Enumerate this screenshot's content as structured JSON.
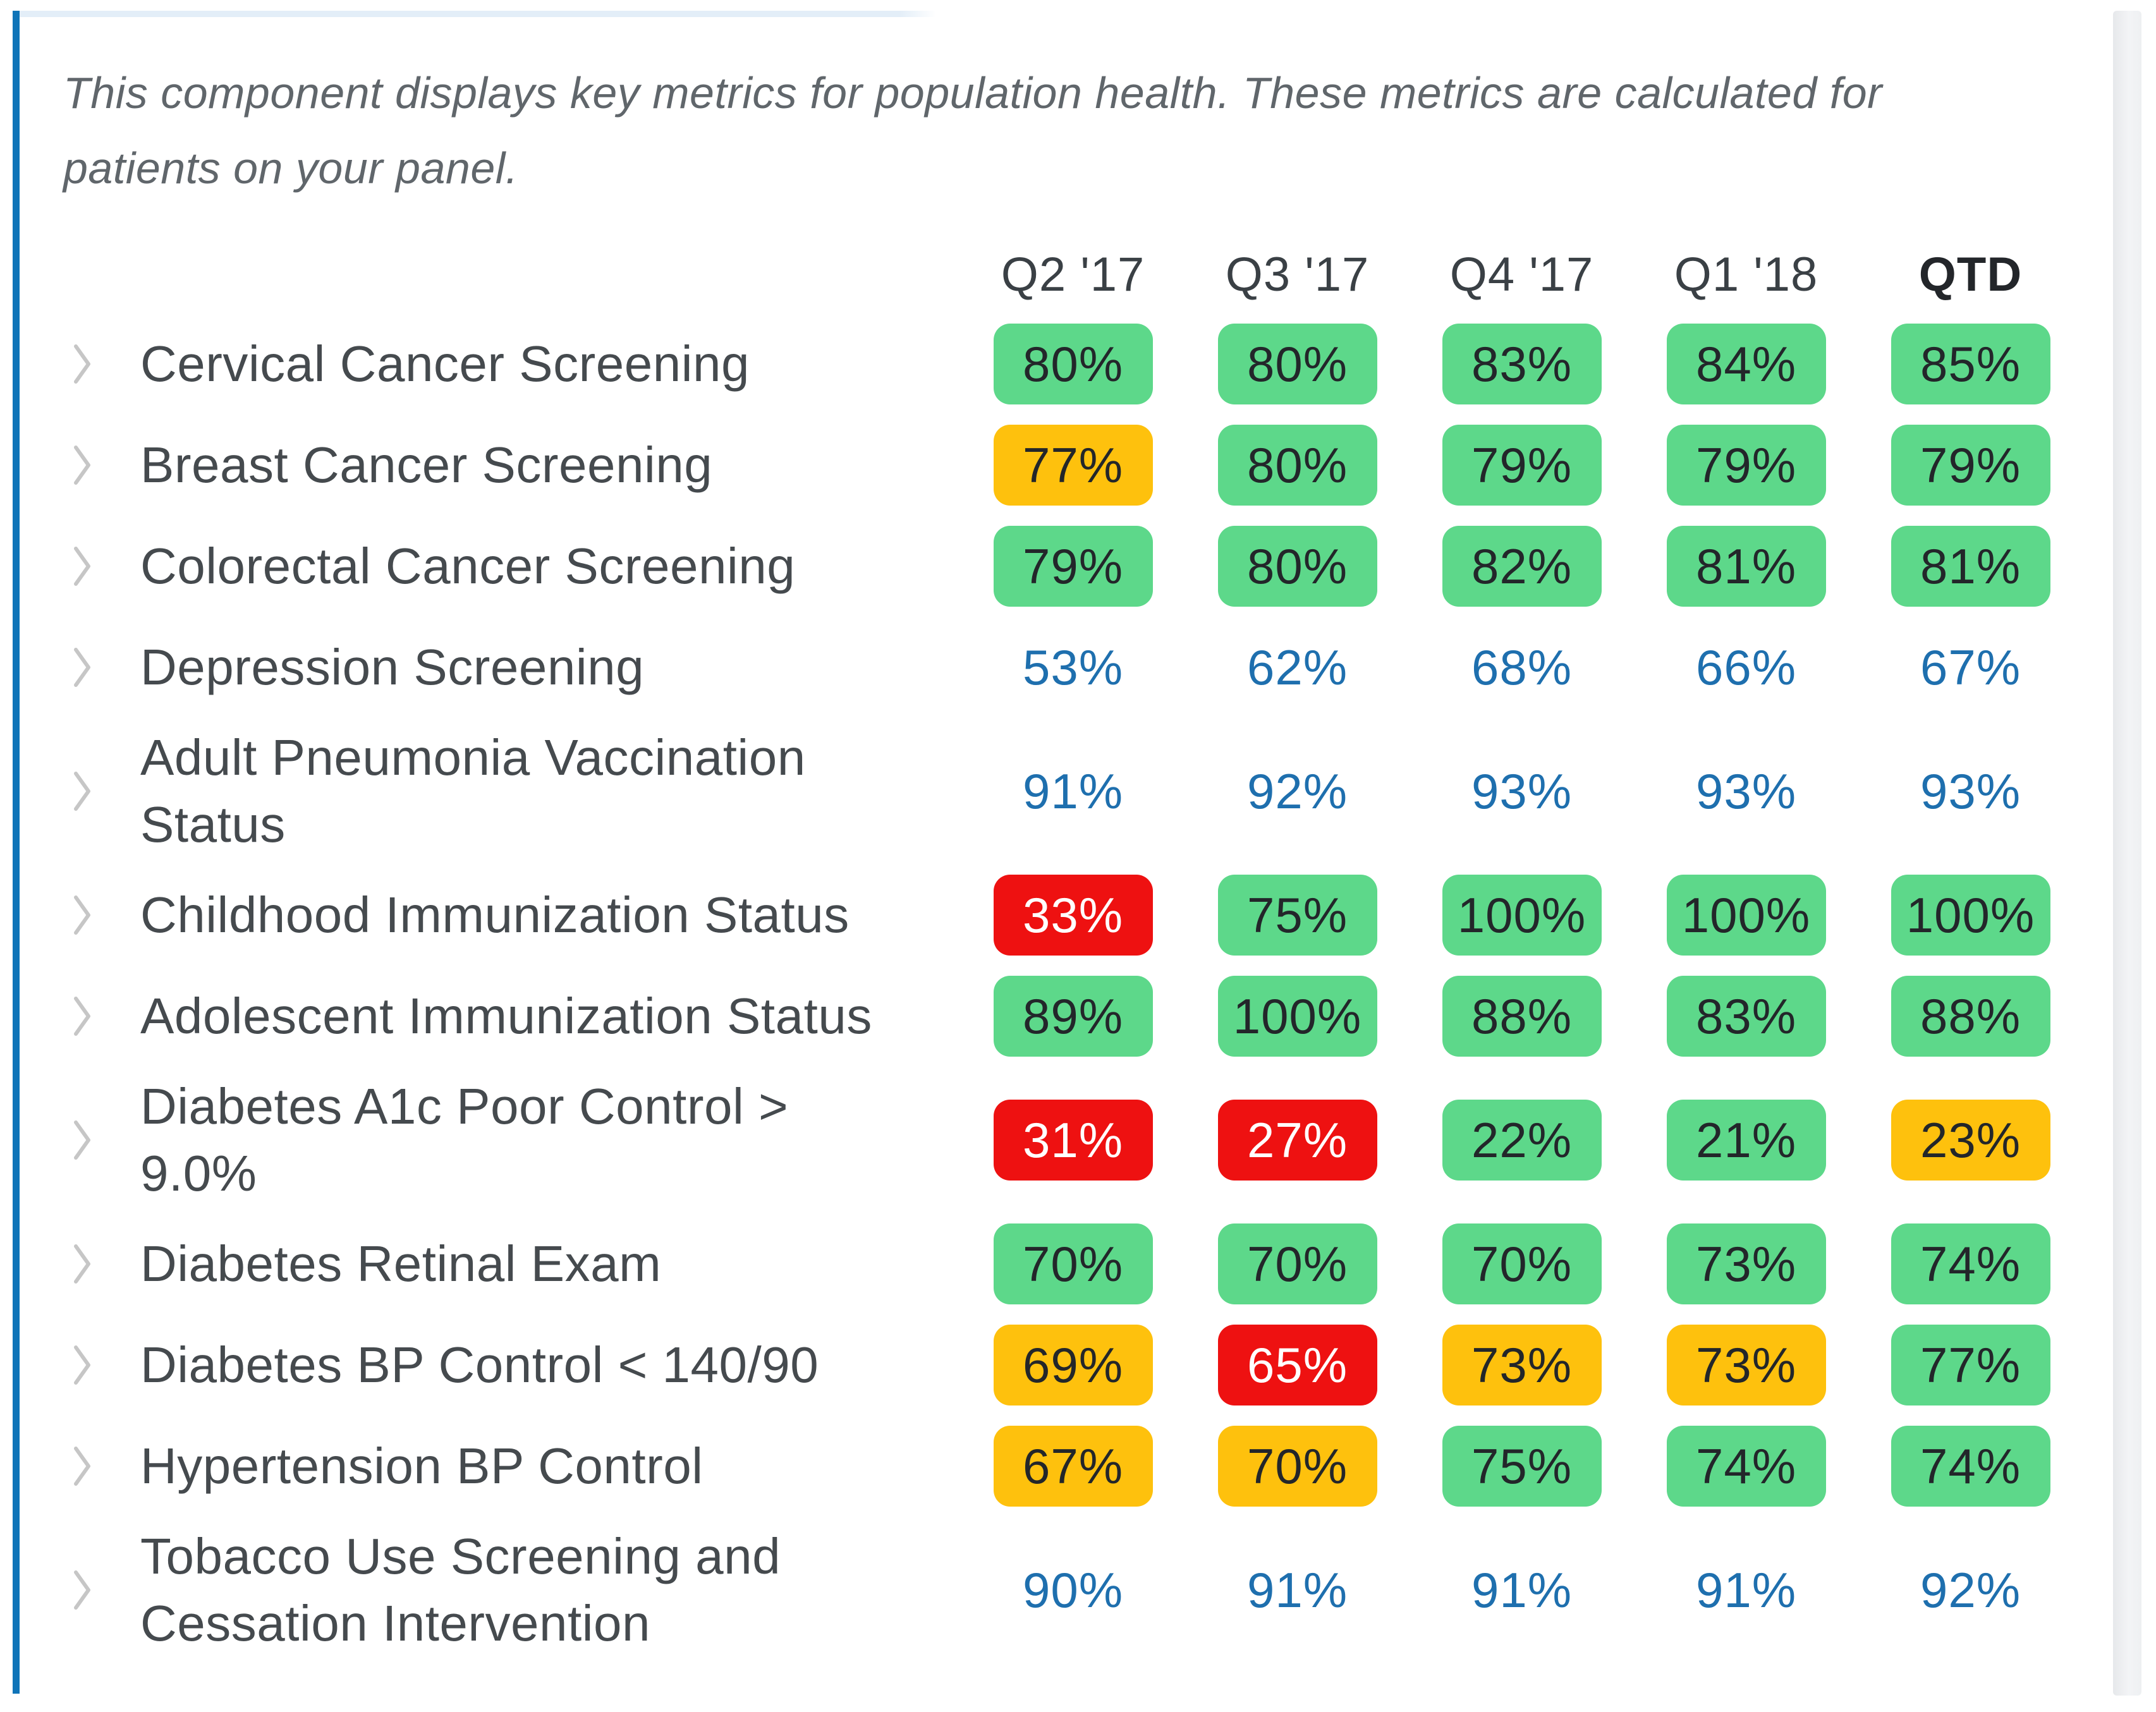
{
  "description_lines": [
    "This component displays key metrics for population health. These metrics are calculated for",
    "patients on your panel."
  ],
  "columns": [
    {
      "label": "Q2 '17",
      "emphasis": false
    },
    {
      "label": "Q3 '17",
      "emphasis": false
    },
    {
      "label": "Q4 '17",
      "emphasis": false
    },
    {
      "label": "Q1 '18",
      "emphasis": false
    },
    {
      "label": "QTD",
      "emphasis": true
    }
  ],
  "status_colors": {
    "green": "#5dd88a",
    "yellow": "#fec10d",
    "red": "#ee1111",
    "plain_value_text": "#1e6fae",
    "accent_bar": "#0f74b8",
    "top_strip": "#e3eef8"
  },
  "metrics": [
    {
      "label_lines": [
        "Cervical Cancer Screening"
      ],
      "values": [
        {
          "text": "80%",
          "status": "green"
        },
        {
          "text": "80%",
          "status": "green"
        },
        {
          "text": "83%",
          "status": "green"
        },
        {
          "text": "84%",
          "status": "green"
        },
        {
          "text": "85%",
          "status": "green"
        }
      ]
    },
    {
      "label_lines": [
        "Breast Cancer Screening"
      ],
      "values": [
        {
          "text": "77%",
          "status": "yellow"
        },
        {
          "text": "80%",
          "status": "green"
        },
        {
          "text": "79%",
          "status": "green"
        },
        {
          "text": "79%",
          "status": "green"
        },
        {
          "text": "79%",
          "status": "green"
        }
      ]
    },
    {
      "label_lines": [
        "Colorectal Cancer Screening"
      ],
      "values": [
        {
          "text": "79%",
          "status": "green"
        },
        {
          "text": "80%",
          "status": "green"
        },
        {
          "text": "82%",
          "status": "green"
        },
        {
          "text": "81%",
          "status": "green"
        },
        {
          "text": "81%",
          "status": "green"
        }
      ]
    },
    {
      "label_lines": [
        "Depression Screening"
      ],
      "values": [
        {
          "text": "53%",
          "status": "plain"
        },
        {
          "text": "62%",
          "status": "plain"
        },
        {
          "text": "68%",
          "status": "plain"
        },
        {
          "text": "66%",
          "status": "plain"
        },
        {
          "text": "67%",
          "status": "plain"
        }
      ]
    },
    {
      "label_lines": [
        "Adult Pneumonia Vaccination",
        "Status"
      ],
      "values": [
        {
          "text": "91%",
          "status": "plain"
        },
        {
          "text": "92%",
          "status": "plain"
        },
        {
          "text": "93%",
          "status": "plain"
        },
        {
          "text": "93%",
          "status": "plain"
        },
        {
          "text": "93%",
          "status": "plain"
        }
      ]
    },
    {
      "label_lines": [
        "Childhood Immunization Status"
      ],
      "values": [
        {
          "text": "33%",
          "status": "red"
        },
        {
          "text": "75%",
          "status": "green"
        },
        {
          "text": "100%",
          "status": "green"
        },
        {
          "text": "100%",
          "status": "green"
        },
        {
          "text": "100%",
          "status": "green"
        }
      ]
    },
    {
      "label_lines": [
        "Adolescent Immunization Status"
      ],
      "values": [
        {
          "text": "89%",
          "status": "green"
        },
        {
          "text": "100%",
          "status": "green"
        },
        {
          "text": "88%",
          "status": "green"
        },
        {
          "text": "83%",
          "status": "green"
        },
        {
          "text": "88%",
          "status": "green"
        }
      ]
    },
    {
      "label_lines": [
        "Diabetes A1c Poor Control >",
        "9.0%"
      ],
      "values": [
        {
          "text": "31%",
          "status": "red"
        },
        {
          "text": "27%",
          "status": "red"
        },
        {
          "text": "22%",
          "status": "green"
        },
        {
          "text": "21%",
          "status": "green"
        },
        {
          "text": "23%",
          "status": "yellow"
        }
      ]
    },
    {
      "label_lines": [
        "Diabetes Retinal Exam"
      ],
      "values": [
        {
          "text": "70%",
          "status": "green"
        },
        {
          "text": "70%",
          "status": "green"
        },
        {
          "text": "70%",
          "status": "green"
        },
        {
          "text": "73%",
          "status": "green"
        },
        {
          "text": "74%",
          "status": "green"
        }
      ]
    },
    {
      "label_lines": [
        "Diabetes BP Control < 140/90"
      ],
      "values": [
        {
          "text": "69%",
          "status": "yellow"
        },
        {
          "text": "65%",
          "status": "red"
        },
        {
          "text": "73%",
          "status": "yellow"
        },
        {
          "text": "73%",
          "status": "yellow"
        },
        {
          "text": "77%",
          "status": "green"
        }
      ]
    },
    {
      "label_lines": [
        "Hypertension BP Control"
      ],
      "values": [
        {
          "text": "67%",
          "status": "yellow"
        },
        {
          "text": "70%",
          "status": "yellow"
        },
        {
          "text": "75%",
          "status": "green"
        },
        {
          "text": "74%",
          "status": "green"
        },
        {
          "text": "74%",
          "status": "green"
        }
      ]
    },
    {
      "label_lines": [
        "Tobacco Use Screening and",
        "Cessation Intervention"
      ],
      "values": [
        {
          "text": "90%",
          "status": "plain"
        },
        {
          "text": "91%",
          "status": "plain"
        },
        {
          "text": "91%",
          "status": "plain"
        },
        {
          "text": "91%",
          "status": "plain"
        },
        {
          "text": "92%",
          "status": "plain"
        }
      ]
    }
  ]
}
